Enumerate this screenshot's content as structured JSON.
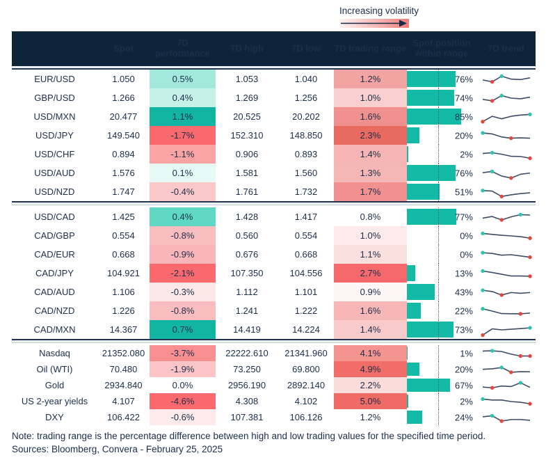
{
  "legend": {
    "label": "Increasing volatility"
  },
  "note": "Note: trading range is the percentage difference between high and low trading values for the specified time period.",
  "sources": "Sources: Bloomberg, Convera - February 25, 2025",
  "colors": {
    "header_bg": "#0e2438",
    "text": "#1b2e4b",
    "bar_teal": "#13bba7",
    "spark_line": "#3c4c66",
    "dot_max": "#2ec4ae",
    "dot_min": "#e0473d",
    "separator_line": "#203450",
    "separator_band": "#eef1f3",
    "legend_gradient_end": "#ef7f7a"
  },
  "chart_data": {
    "type": "table",
    "columns": [
      "",
      "Spot",
      "7D performance",
      "7D high",
      "7D low",
      "7D trading range",
      "Spot position within range",
      "7D trend"
    ],
    "sections": [
      {
        "rows": [
          {
            "name": "EUR/USD",
            "spot": "1.050",
            "perf": "0.5%",
            "perf_bg": "#a3e9db",
            "high": "1.053",
            "low": "1.040",
            "range": "1.2%",
            "range_bg": "#f2a4a3",
            "position_pct": 76,
            "position_label": "76%",
            "trend": [
              45,
              30,
              75,
              52,
              48,
              62
            ],
            "max_i": 2,
            "min_i": 1
          },
          {
            "name": "GBP/USD",
            "spot": "1.266",
            "perf": "0.4%",
            "perf_bg": "#c5f1e7",
            "high": "1.269",
            "low": "1.256",
            "range": "1.0%",
            "range_bg": "#f8cfce",
            "position_pct": 74,
            "position_label": "74%",
            "trend": [
              40,
              28,
              70,
              50,
              45,
              58
            ],
            "max_i": 2,
            "min_i": 1
          },
          {
            "name": "USD/MXN",
            "spot": "20.477",
            "perf": "1.1%",
            "perf_bg": "#12b5a2",
            "high": "20.525",
            "low": "20.202",
            "range": "1.6%",
            "range_bg": "#f0918f",
            "position_pct": 85,
            "position_label": "85%",
            "trend": [
              12,
              55,
              35,
              55,
              65,
              70
            ],
            "max_i": 5,
            "min_i": 0
          },
          {
            "name": "USD/JPY",
            "spot": "149.540",
            "perf": "-1.7%",
            "perf_bg": "#f9696e",
            "high": "152.310",
            "low": "148.850",
            "range": "2.3%",
            "range_bg": "#e86a60",
            "position_pct": 20,
            "position_label": "20%",
            "trend": [
              72,
              64,
              40,
              30,
              33,
              30
            ],
            "max_i": 0,
            "min_i": 3
          },
          {
            "name": "USD/CHF",
            "spot": "0.894",
            "perf": "-1.1%",
            "perf_bg": "#f9a3a5",
            "high": "0.906",
            "low": "0.893",
            "range": "1.4%",
            "range_bg": "#f5b5b4",
            "position_pct": 2,
            "position_label": "2%",
            "trend": [
              58,
              64,
              52,
              36,
              34,
              20
            ],
            "max_i": 1,
            "min_i": 5
          },
          {
            "name": "USD/AUD",
            "spot": "1.576",
            "perf": "0.1%",
            "perf_bg": "#e6f9f4",
            "high": "1.581",
            "low": "1.560",
            "range": "1.3%",
            "range_bg": "#f5b7b6",
            "position_pct": 76,
            "position_label": "76%",
            "trend": [
              55,
              64,
              28,
              12,
              42,
              52
            ],
            "max_i": 1,
            "min_i": 3
          },
          {
            "name": "USD/NZD",
            "spot": "1.747",
            "perf": "-0.4%",
            "perf_bg": "#fbc8c9",
            "high": "1.761",
            "low": "1.732",
            "range": "1.7%",
            "range_bg": "#f0918f",
            "position_pct": 51,
            "position_label": "51%",
            "trend": [
              62,
              58,
              15,
              28,
              38,
              44
            ],
            "max_i": 0,
            "min_i": 2
          }
        ]
      },
      {
        "rows": [
          {
            "name": "USD/CAD",
            "spot": "1.425",
            "perf": "0.4%",
            "perf_bg": "#5ed7c3",
            "high": "1.428",
            "low": "1.417",
            "range": "0.8%",
            "range_bg": "#ffffff",
            "position_pct": 77,
            "position_label": "77%",
            "trend": [
              42,
              55,
              28,
              52,
              70,
              66
            ],
            "max_i": 4,
            "min_i": 2
          },
          {
            "name": "CAD/GBP",
            "spot": "0.554",
            "perf": "-0.8%",
            "perf_bg": "#fabdbf",
            "high": "0.560",
            "low": "0.554",
            "range": "1.0%",
            "range_bg": "#fcebea",
            "position_pct": 0,
            "position_label": "0%",
            "trend": [
              70,
              62,
              55,
              50,
              44,
              32
            ],
            "max_i": 0,
            "min_i": 5
          },
          {
            "name": "CAD/EUR",
            "spot": "0.668",
            "perf": "-0.9%",
            "perf_bg": "#f9b5b8",
            "high": "0.676",
            "low": "0.668",
            "range": "1.1%",
            "range_bg": "#fadfdf",
            "position_pct": 0,
            "position_label": "0%",
            "trend": [
              66,
              60,
              46,
              50,
              40,
              30
            ],
            "max_i": 0,
            "min_i": 5
          },
          {
            "name": "CAD/JPY",
            "spot": "104.921",
            "perf": "-2.1%",
            "perf_bg": "#f9696e",
            "high": "107.350",
            "low": "104.556",
            "range": "2.7%",
            "range_bg": "#f5696d",
            "position_pct": 13,
            "position_label": "13%",
            "trend": [
              70,
              58,
              44,
              30,
              30,
              28
            ],
            "max_i": 0,
            "min_i": 5
          },
          {
            "name": "CAD/AUD",
            "spot": "1.106",
            "perf": "-0.3%",
            "perf_bg": "#fde8e8",
            "high": "1.112",
            "low": "1.101",
            "range": "0.9%",
            "range_bg": "#fef6f6",
            "position_pct": 43,
            "position_label": "43%",
            "trend": [
              66,
              56,
              28,
              48,
              42,
              48
            ],
            "max_i": 0,
            "min_i": 2
          },
          {
            "name": "CAD/NZD",
            "spot": "1.226",
            "perf": "-0.8%",
            "perf_bg": "#fabdbf",
            "high": "1.241",
            "low": "1.222",
            "range": "1.6%",
            "range_bg": "#f6b7b6",
            "position_pct": 22,
            "position_label": "22%",
            "trend": [
              68,
              50,
              30,
              29,
              28,
              34
            ],
            "max_i": 0,
            "min_i": 4
          },
          {
            "name": "CAD/MXN",
            "spot": "14.367",
            "perf": "0.7%",
            "perf_bg": "#12b5a2",
            "high": "14.419",
            "low": "14.224",
            "range": "1.4%",
            "range_bg": "#f9caca",
            "position_pct": 73,
            "position_label": "73%",
            "trend": [
              8,
              58,
              50,
              55,
              60,
              66
            ],
            "max_i": 5,
            "min_i": 0
          }
        ]
      },
      {
        "rows": [
          {
            "name": "Nasdaq",
            "spot": "21352.080",
            "perf": "-3.7%",
            "perf_bg": "#f78e90",
            "high": "22222.610",
            "low": "21341.960",
            "range": "4.1%",
            "range_bg": "#f49390",
            "position_pct": 1,
            "position_label": "1%",
            "trend": [
              70,
              72,
              66,
              45,
              30,
              30
            ],
            "max_i": 1,
            "min_i": 4,
            "min_i2": 5
          },
          {
            "name": "Oil (WTI)",
            "spot": "70.480",
            "perf": "-1.9%",
            "perf_bg": "#fbc4c6",
            "high": "73.250",
            "low": "69.800",
            "range": "4.9%",
            "range_bg": "#f06d68",
            "position_pct": 20,
            "position_label": "20%",
            "trend": [
              52,
              56,
              66,
              28,
              33,
              32
            ],
            "max_i": 2,
            "min_i": 3
          },
          {
            "name": "Gold",
            "spot": "2934.840",
            "perf": "0.0%",
            "perf_bg": "#ffffff",
            "high": "2956.190",
            "low": "2892.140",
            "range": "2.2%",
            "range_bg": "#fbdcdb",
            "position_pct": 67,
            "position_label": "67%",
            "trend": [
              38,
              32,
              46,
              42,
              72,
              35
            ],
            "max_i": 4,
            "min_i": 1
          },
          {
            "name": "US 2-year yields",
            "spot": "4.107",
            "perf": "-4.6%",
            "perf_bg": "#f9696e",
            "high": "4.308",
            "low": "4.102",
            "range": "5.0%",
            "range_bg": "#ef6b66",
            "position_pct": 2,
            "position_label": "2%",
            "trend": [
              70,
              62,
              62,
              50,
              44,
              32
            ],
            "max_i": 0,
            "min_i": 5
          },
          {
            "name": "DXY",
            "spot": "106.422",
            "perf": "-0.6%",
            "perf_bg": "#fdeaea",
            "high": "107.381",
            "low": "106.126",
            "range": "1.2%",
            "range_bg": "#ffffff",
            "position_pct": 24,
            "position_label": "24%",
            "trend": [
              56,
              64,
              22,
              34,
              34,
              28
            ],
            "max_i": 1,
            "min_i": 2
          }
        ]
      }
    ]
  }
}
